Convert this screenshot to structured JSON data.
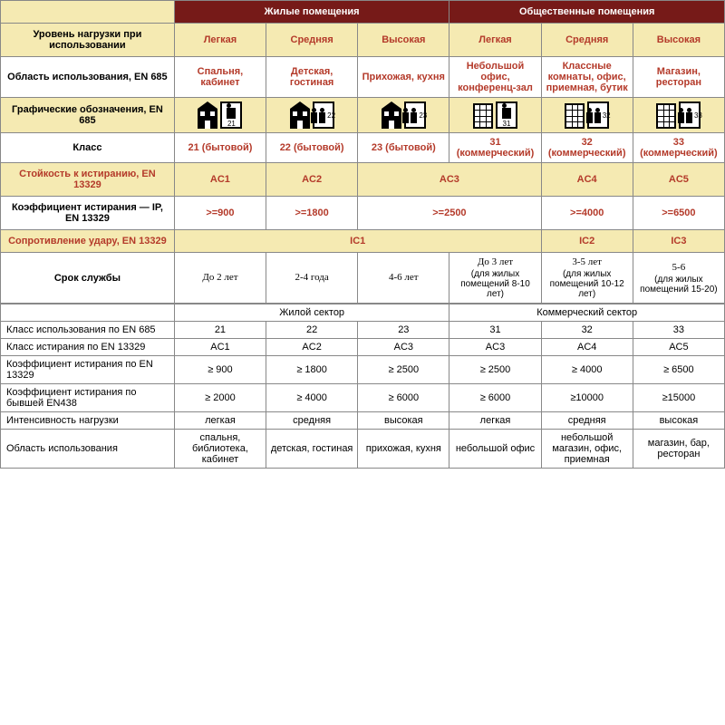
{
  "top": {
    "group_headers": [
      "Жилые помещения",
      "Общественные помещения"
    ],
    "load_row": {
      "label": "Уровень нагрузки при использовании",
      "cells": [
        "Легкая",
        "Средняя",
        "Высокая",
        "Легкая",
        "Средняя",
        "Высокая"
      ]
    },
    "area_row": {
      "label": "Область использования, EN 685",
      "cells": [
        "Спальня, кабинет",
        "Детская, гостиная",
        "Прихожая, кухня",
        "Небольшой офис, конференц-зал",
        "Классные комнаты, офис, приемная, бутик",
        "Магазин, ресторан"
      ]
    },
    "icons_row": {
      "label": "Графические обозначения, EN 685",
      "nums": [
        "21",
        "22",
        "23",
        "31",
        "32",
        "33"
      ],
      "types": [
        "house",
        "house",
        "house",
        "building",
        "building",
        "building"
      ],
      "people": [
        1,
        2,
        2,
        1,
        2,
        2
      ]
    },
    "class_row": {
      "label": "Класс",
      "cells": [
        "21 (бытовой)",
        "22 (бытовой)",
        "23 (бытовой)",
        "31 (коммерческий)",
        "32 (коммерческий)",
        "33 (коммерческий)"
      ]
    },
    "abrasion_row": {
      "label": "Стойкость к истиранию, EN 13329",
      "cells": [
        "AC1",
        "AC2",
        "AC3",
        "",
        "AC4",
        "AC5"
      ],
      "spans": [
        1,
        1,
        2,
        0,
        1,
        1
      ]
    },
    "coef_row": {
      "label": "Коэффициент истирания — IP, EN 13329",
      "cells": [
        ">=900",
        ">=1800",
        ">=2500",
        "",
        ">=4000",
        ">=6500"
      ],
      "spans": [
        1,
        1,
        2,
        0,
        1,
        1
      ]
    },
    "impact_row": {
      "label": "Сопротивление удару, EN 13329",
      "cells": [
        "IC1",
        "",
        "",
        "",
        "IC2",
        "IC3"
      ],
      "spans": [
        4,
        0,
        0,
        0,
        1,
        1
      ]
    },
    "life_row": {
      "label": "Срок службы",
      "cells": [
        {
          "main": "До 2 лет",
          "sub": ""
        },
        {
          "main": "2-4 года",
          "sub": ""
        },
        {
          "main": "4-6 лет",
          "sub": ""
        },
        {
          "main": "До 3 лет",
          "sub": "(для жилых помещений 8-10 лет)"
        },
        {
          "main": "3-5 лет",
          "sub": "(для жилых помещений 10-12 лет)"
        },
        {
          "main": "5-6",
          "sub": "(для жилых помещений 15-20)"
        }
      ]
    }
  },
  "bottom": {
    "sector_headers": [
      "Жилой сектор",
      "Коммерческий сектор"
    ],
    "rows": [
      {
        "label": "Класс использования по EN 685",
        "cells": [
          "21",
          "22",
          "23",
          "31",
          "32",
          "33"
        ]
      },
      {
        "label": "Класс истирания по EN 13329",
        "cells": [
          "AC1",
          "AC2",
          "AC3",
          "AC3",
          "AC4",
          "AC5"
        ]
      },
      {
        "label": "Коэффициент истирания по EN 13329",
        "cells": [
          "≥ 900",
          "≥ 1800",
          "≥ 2500",
          "≥ 2500",
          "≥ 4000",
          "≥ 6500"
        ]
      },
      {
        "label": "Коэффициент истирания по бывшей EN438",
        "cells": [
          "≥ 2000",
          "≥ 4000",
          "≥ 6000",
          "≥ 6000",
          "≥10000",
          "≥15000"
        ]
      },
      {
        "label": "Интенсивность нагрузки",
        "cells": [
          "легкая",
          "средняя",
          "высокая",
          "легкая",
          "средняя",
          "высокая"
        ]
      },
      {
        "label": "Область использования",
        "cells": [
          "спальня, библиотека, кабинет",
          "детская, гостиная",
          "прихожая, кухня",
          "небольшой офис",
          "небольшой магазин, офис, приемная",
          "магазин, бар, ресторан"
        ]
      }
    ]
  },
  "colors": {
    "header": "#761a18",
    "cream": "#f5eab2",
    "red_text": "#b43a2a"
  },
  "col_widths": {
    "label": "24%",
    "data": "12.66%"
  }
}
